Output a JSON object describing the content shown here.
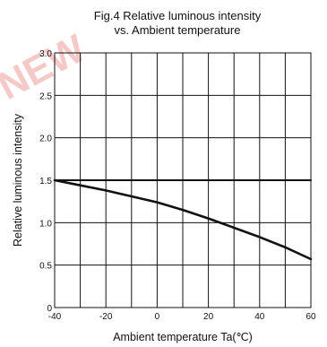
{
  "chart_data": {
    "type": "line",
    "title_line1": "Fig.4 Relative luminous intensity",
    "title_line2": "vs. Ambient temperature",
    "xlabel": "Ambient temperature Ta(℃)",
    "ylabel": "Relative luminous intensity",
    "xlim": [
      -40,
      60
    ],
    "ylim": [
      0,
      3.0
    ],
    "x_ticks": [
      -40,
      -20,
      0,
      20,
      40,
      60
    ],
    "x_gridlines": [
      -40,
      -30,
      -20,
      -10,
      0,
      10,
      20,
      30,
      40,
      50,
      60
    ],
    "y_ticks": [
      0,
      0.5,
      1.0,
      1.5,
      2.0,
      2.5,
      3.0
    ],
    "y_tick_labels": [
      "0",
      "0.5",
      "1.0",
      "1.5",
      "2.0",
      "2.5",
      "3.0"
    ],
    "grid": true,
    "series": [
      {
        "x": [
          -40,
          -30,
          -20,
          -10,
          0,
          10,
          20,
          30,
          40,
          50,
          60
        ],
        "y": [
          1.5,
          1.44,
          1.38,
          1.31,
          1.24,
          1.15,
          1.05,
          0.94,
          0.83,
          0.71,
          0.57
        ],
        "color": "#111111"
      },
      {
        "x": [
          -40,
          60
        ],
        "y": [
          1.5,
          1.5
        ],
        "color": "#111111"
      }
    ]
  },
  "watermark": {
    "text": "NEW",
    "color": "#f6c9c9"
  }
}
